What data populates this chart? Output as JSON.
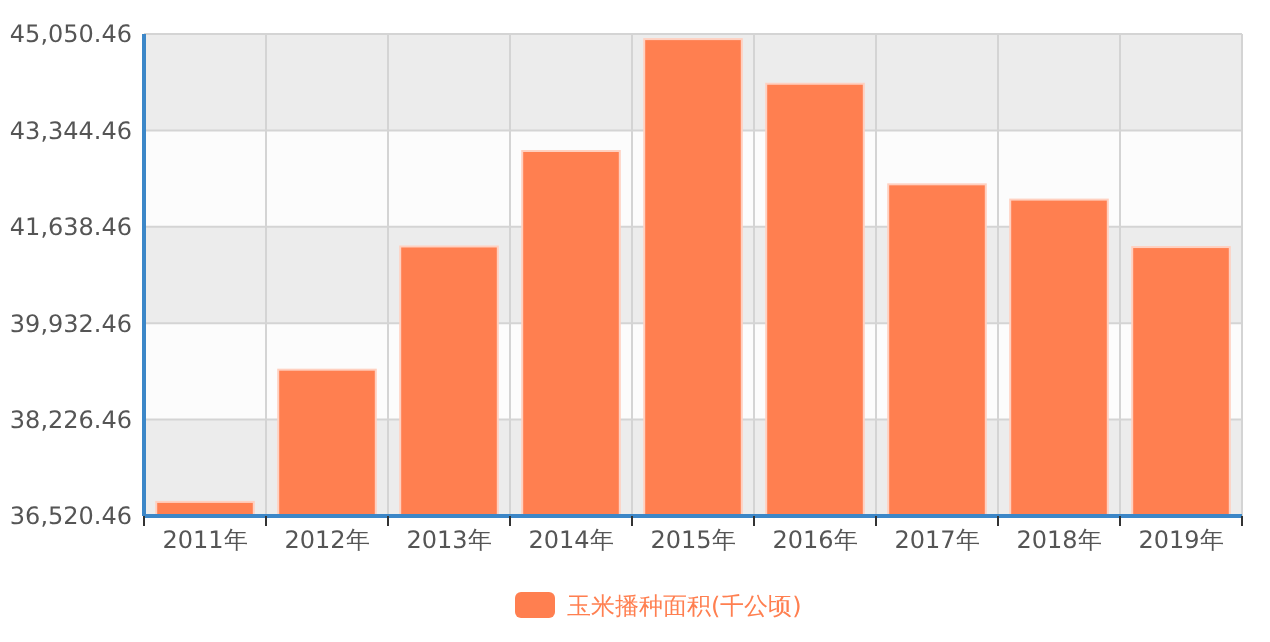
{
  "chart_data": {
    "type": "bar",
    "categories": [
      "2011年",
      "2012年",
      "2013年",
      "2014年",
      "2015年",
      "2016年",
      "2017年",
      "2018年",
      "2019年"
    ],
    "series": [
      {
        "name": "玉米播种面积(千公顷)",
        "color": "#ff7f50",
        "values": [
          36770,
          39110,
          41290,
          42980,
          44960,
          44170,
          42390,
          42120,
          41280
        ]
      }
    ],
    "ylim": [
      36520.46,
      45050.46
    ],
    "yticks": [
      {
        "value": 36520.46,
        "label": "36,520.46"
      },
      {
        "value": 38226.46,
        "label": "38,226.46"
      },
      {
        "value": 39932.46,
        "label": "39,932.46"
      },
      {
        "value": 41638.46,
        "label": "41,638.46"
      },
      {
        "value": 43344.46,
        "label": "43,344.46"
      },
      {
        "value": 45050.46,
        "label": "45,050.46"
      }
    ],
    "grid": true,
    "legend": "bottom"
  }
}
